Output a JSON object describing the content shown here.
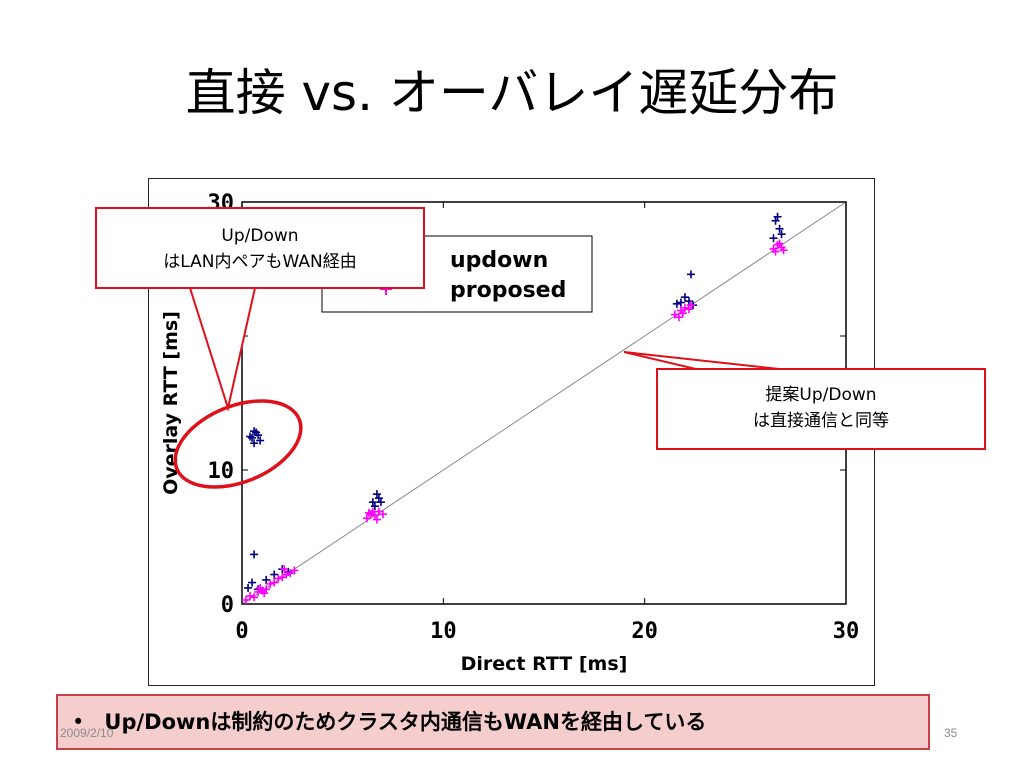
{
  "slide": {
    "title": "直接 vs. オーバレイ遅延分布",
    "date": "2009/2/10",
    "page_number": "35"
  },
  "callouts": {
    "left": {
      "line1": "Up/Down",
      "line2": "はLAN内ペアもWAN経由"
    },
    "right": {
      "line1": "提案Up/Down",
      "line2": "は直接通信と同等"
    }
  },
  "bullet": {
    "marker": "•",
    "text": "Up/Downは制約のためクラスタ内通信もWANを経由している"
  },
  "colors": {
    "updown": "#000080",
    "proposed": "#ff00ff",
    "callout_border": "#e0101a",
    "bullet_bg": "#f5cdcd",
    "bullet_border": "#c8404a",
    "highlight_ellipse": "#e0101a"
  },
  "chart_data": {
    "type": "scatter",
    "xlabel": "Direct RTT [ms]",
    "ylabel": "Overlay RTT [ms]",
    "xlim": [
      0,
      30
    ],
    "ylim": [
      0,
      30
    ],
    "x_ticks": [
      "0",
      "10",
      "20",
      "30"
    ],
    "y_ticks": [
      "0",
      "10",
      "30"
    ],
    "grid": false,
    "legend_position": "top-left",
    "reference_line": "y = x",
    "series": [
      {
        "name": "updown",
        "marker": "plus",
        "color": "#000080",
        "points": [
          [
            0.3,
            1.2
          ],
          [
            0.5,
            1.6
          ],
          [
            0.8,
            1.1
          ],
          [
            0.6,
            3.7
          ],
          [
            1.2,
            1.8
          ],
          [
            1.6,
            2.2
          ],
          [
            2.0,
            2.6
          ],
          [
            2.3,
            2.4
          ],
          [
            0.5,
            12.4
          ],
          [
            0.6,
            12.9
          ],
          [
            0.8,
            12.6
          ],
          [
            0.9,
            12.2
          ],
          [
            0.6,
            12.0
          ],
          [
            0.4,
            12.5
          ],
          [
            0.7,
            12.8
          ],
          [
            6.5,
            7.6
          ],
          [
            6.7,
            8.2
          ],
          [
            6.8,
            7.9
          ],
          [
            6.6,
            7.3
          ],
          [
            6.9,
            7.6
          ],
          [
            21.8,
            22.5
          ],
          [
            22.0,
            22.9
          ],
          [
            22.2,
            22.6
          ],
          [
            21.6,
            22.4
          ],
          [
            22.4,
            22.3
          ],
          [
            22.3,
            24.6
          ],
          [
            26.5,
            28.6
          ],
          [
            26.7,
            28.0
          ],
          [
            26.6,
            28.9
          ],
          [
            26.8,
            27.6
          ],
          [
            26.4,
            27.3
          ]
        ]
      },
      {
        "name": "proposed",
        "marker": "plus",
        "color": "#ff00ff",
        "points": [
          [
            0.2,
            0.3
          ],
          [
            0.4,
            0.6
          ],
          [
            0.6,
            0.5
          ],
          [
            0.8,
            0.9
          ],
          [
            1.0,
            1.0
          ],
          [
            1.2,
            1.1
          ],
          [
            1.4,
            1.5
          ],
          [
            1.6,
            1.6
          ],
          [
            1.8,
            1.9
          ],
          [
            2.0,
            2.0
          ],
          [
            2.2,
            2.2
          ],
          [
            2.4,
            2.3
          ],
          [
            2.6,
            2.5
          ],
          [
            1.1,
            0.8
          ],
          [
            0.9,
            1.2
          ],
          [
            2.1,
            2.6
          ],
          [
            6.2,
            6.4
          ],
          [
            6.4,
            6.7
          ],
          [
            6.6,
            6.6
          ],
          [
            6.8,
            6.9
          ],
          [
            7.0,
            6.7
          ],
          [
            6.5,
            6.9
          ],
          [
            6.7,
            6.3
          ],
          [
            6.3,
            6.8
          ],
          [
            21.5,
            21.6
          ],
          [
            21.8,
            21.9
          ],
          [
            22.0,
            22.1
          ],
          [
            22.2,
            22.0
          ],
          [
            21.7,
            21.4
          ],
          [
            22.3,
            22.3
          ],
          [
            21.9,
            21.7
          ],
          [
            26.4,
            26.5
          ],
          [
            26.6,
            26.8
          ],
          [
            26.8,
            26.6
          ],
          [
            26.5,
            26.3
          ],
          [
            26.7,
            26.9
          ],
          [
            26.9,
            26.4
          ]
        ]
      }
    ]
  }
}
